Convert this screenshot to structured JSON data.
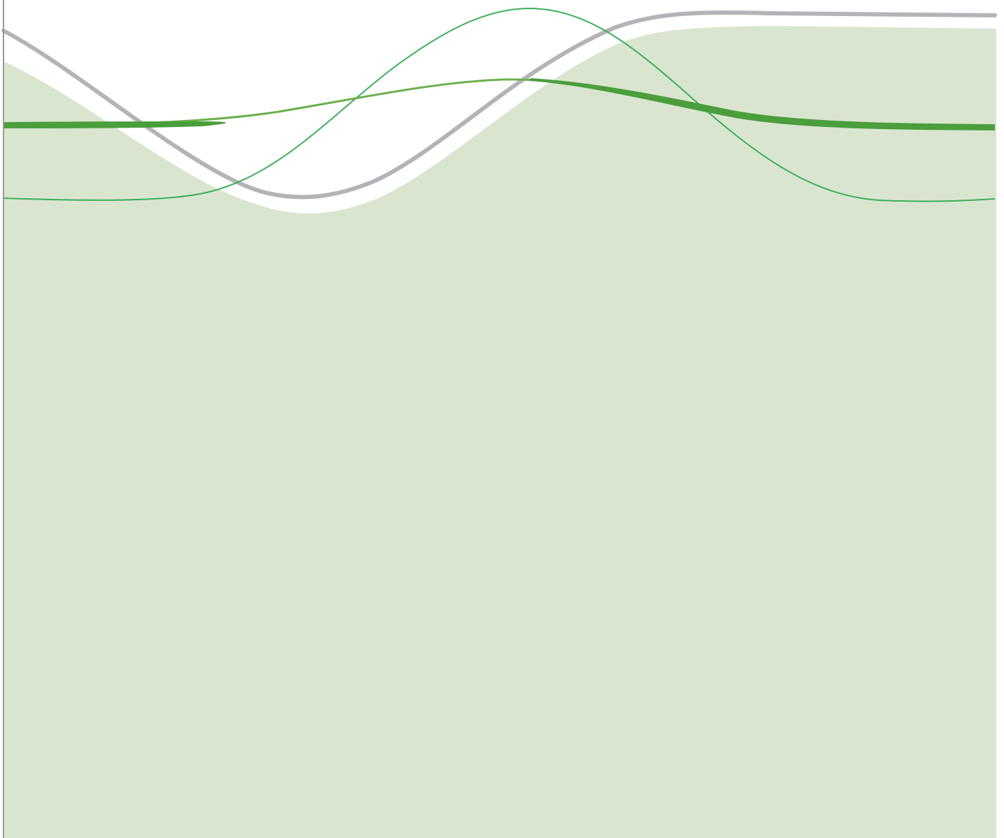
{
  "decor": {
    "colors": {
      "background": "#ffffff",
      "area_fill": "#dae5d0",
      "gray_ribbon": "#b4b4b8",
      "thick_green": "#4a9e3c",
      "medium_green": "#6ab04c",
      "thin_green": "#3aae5a",
      "border": "#9a9a9a"
    },
    "layers": [
      "area",
      "gray-ribbon",
      "thin-green-wave",
      "medium-green-wave",
      "thick-green-line"
    ]
  }
}
